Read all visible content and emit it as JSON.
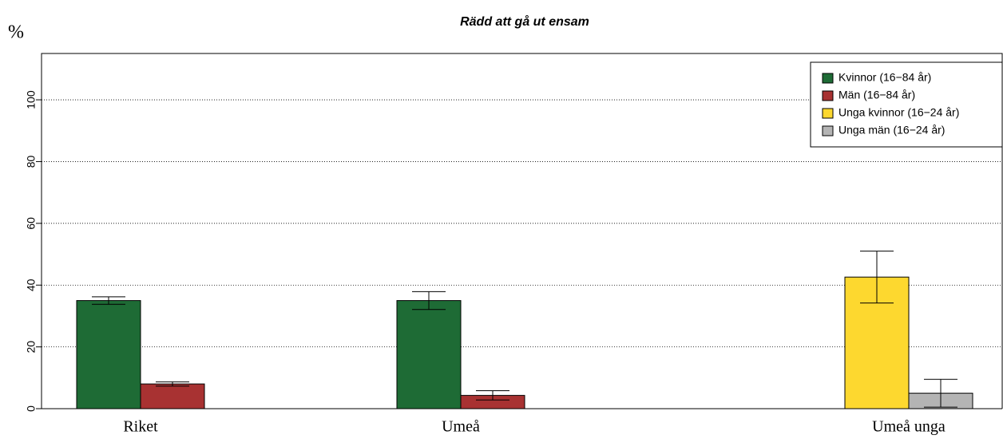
{
  "chart_data": {
    "type": "bar",
    "title": "Rädd att gå ut ensam",
    "ylabel": "%",
    "categories": [
      "Riket",
      "Umeå",
      "Umeå unga"
    ],
    "series": [
      {
        "name": "Kvinnor (16−84 år)",
        "color": "#1e6b35",
        "values": [
          35,
          35,
          null
        ],
        "errors": [
          1.2,
          2.9,
          null
        ]
      },
      {
        "name": "Män (16−84 år)",
        "color": "#a83232",
        "values": [
          8,
          4.3,
          null
        ],
        "errors": [
          0.7,
          1.5,
          null
        ]
      },
      {
        "name": "Unga kvinnor (16−24 år)",
        "color": "#fdd82f",
        "values": [
          null,
          null,
          42.6
        ],
        "errors": [
          null,
          null,
          8.4
        ]
      },
      {
        "name": "Unga män (16−24 år)",
        "color": "#b4b4b4",
        "values": [
          null,
          null,
          5
        ],
        "errors": [
          null,
          null,
          4.5
        ]
      }
    ],
    "ylim": [
      0,
      115
    ],
    "yticks": [
      0,
      20,
      40,
      60,
      80,
      100
    ],
    "grid": true,
    "legend": "top-right"
  }
}
